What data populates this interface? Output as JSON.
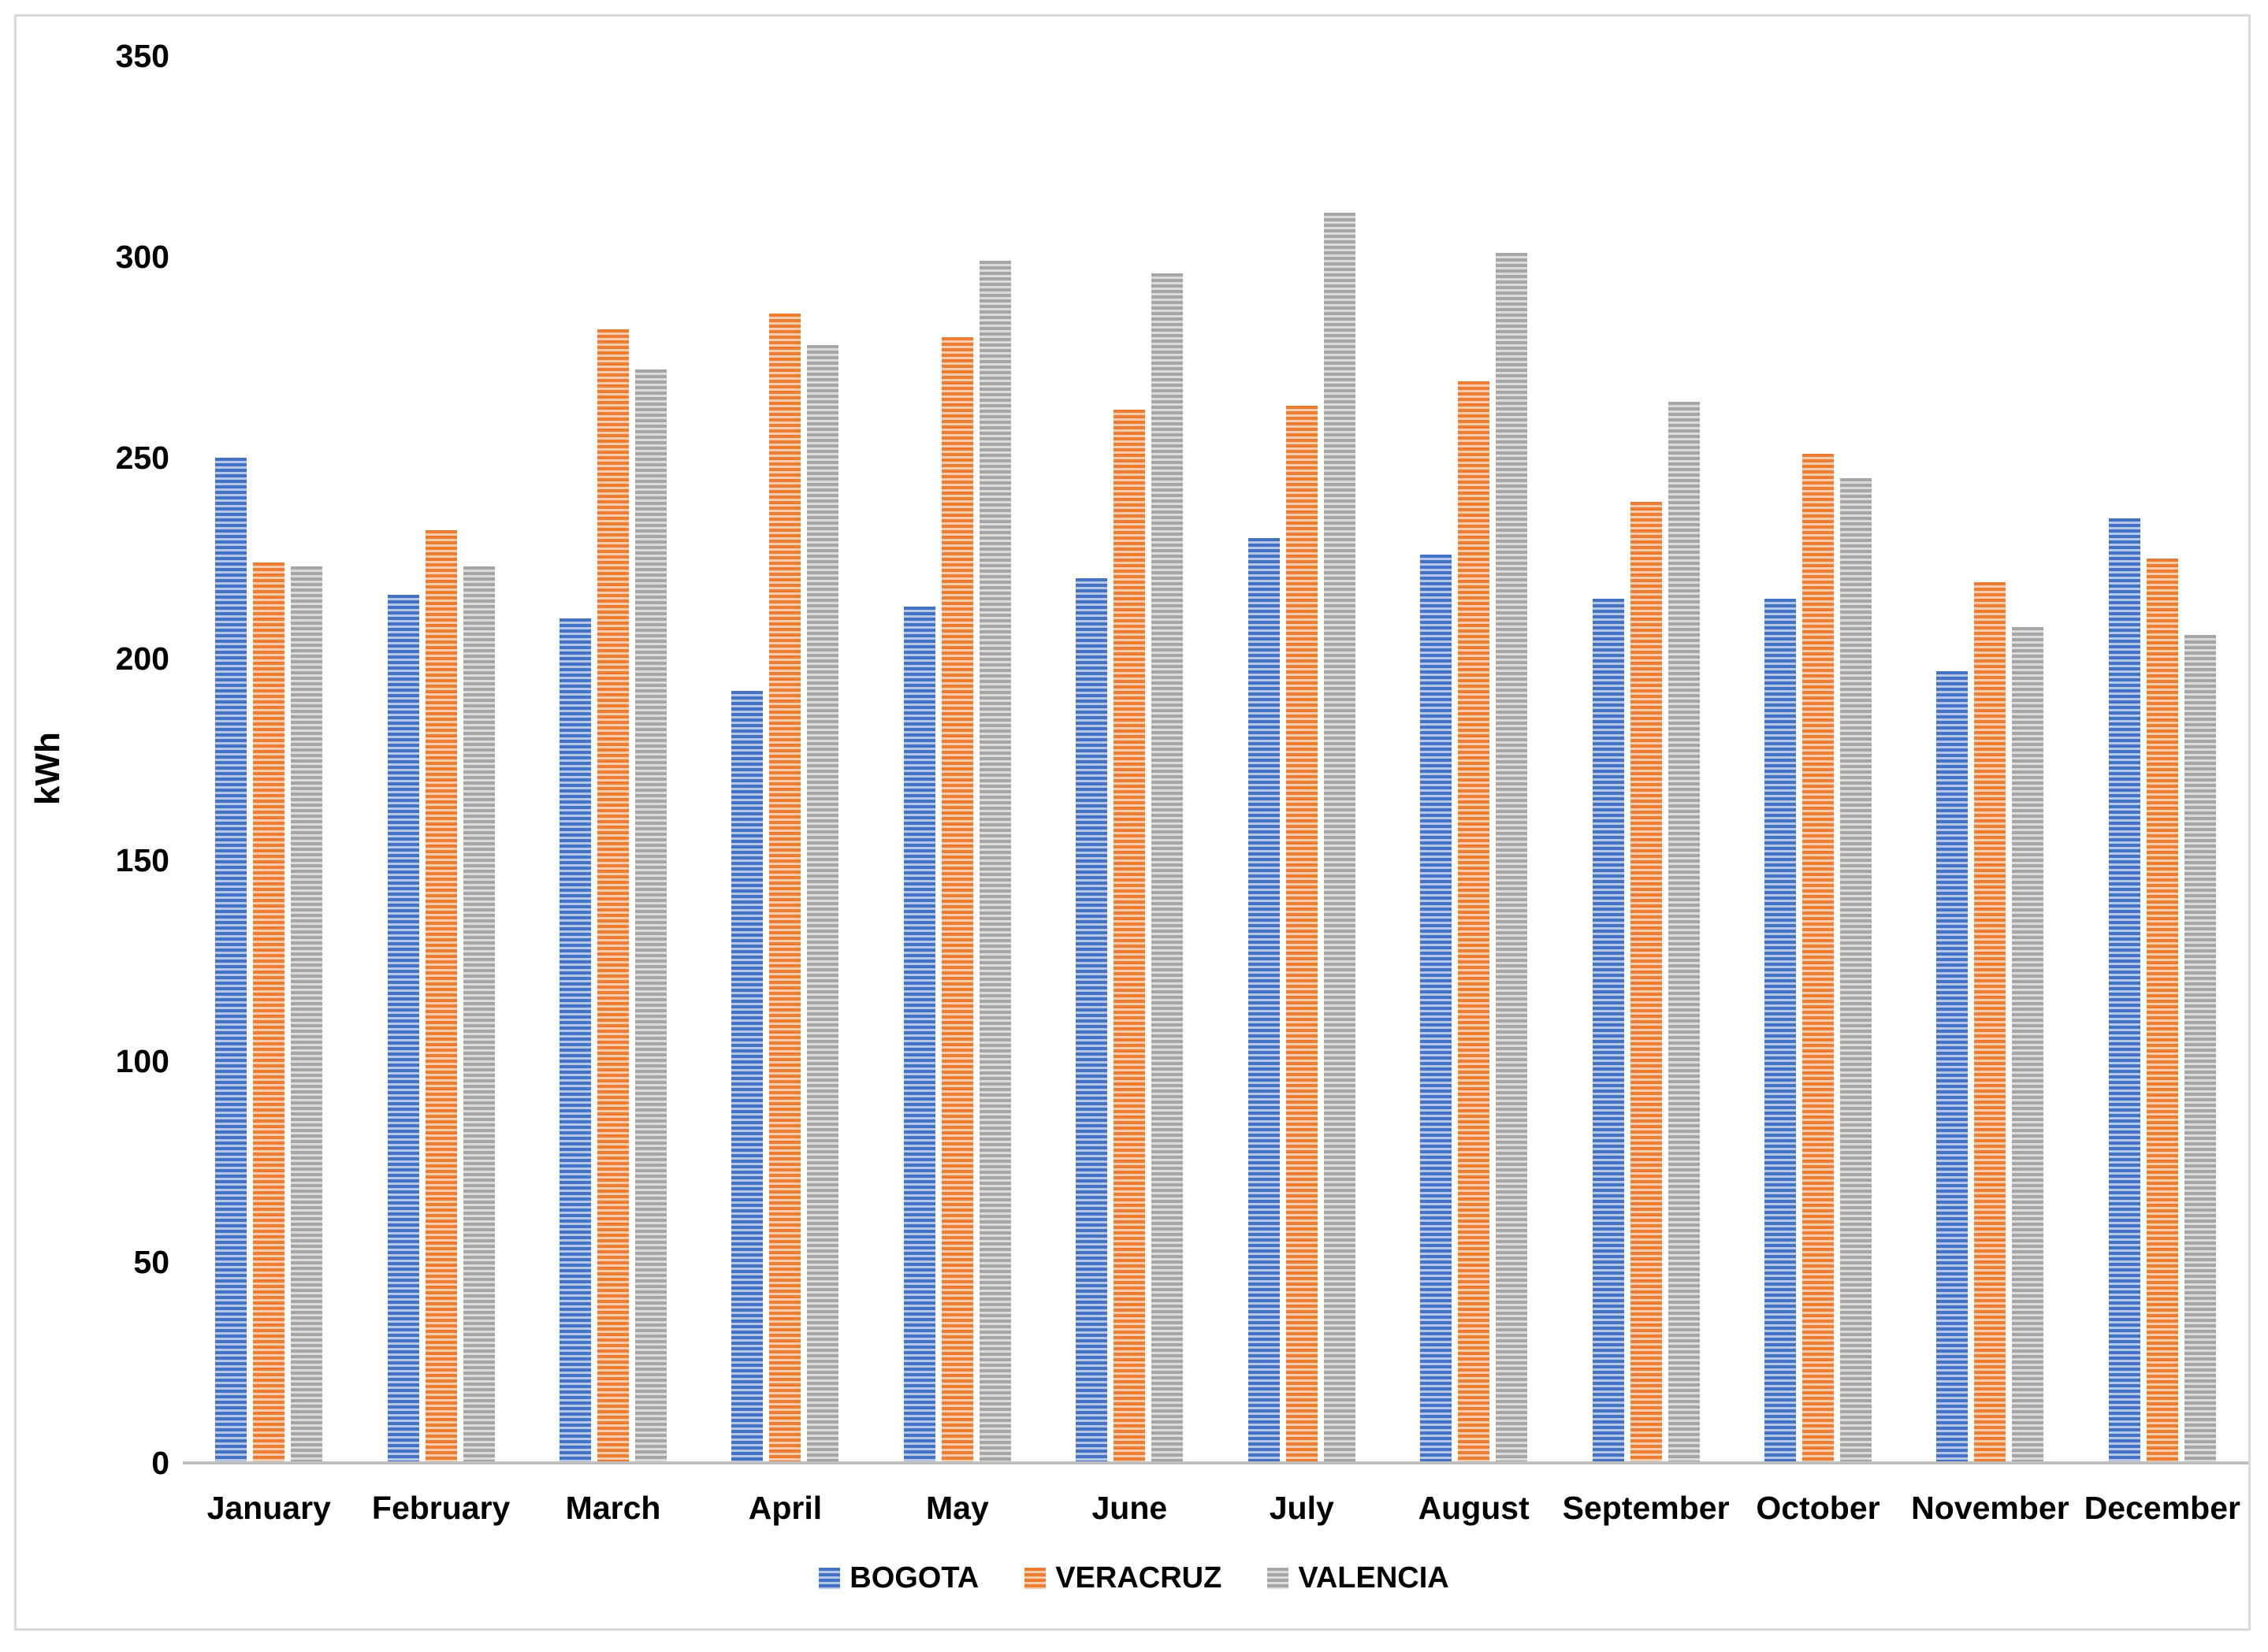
{
  "page": {
    "background": "#ffffff",
    "frame_border_color": "#d9d9d9"
  },
  "chart_data": {
    "type": "bar",
    "title": "",
    "xlabel": "",
    "ylabel": "kWh",
    "ylim": [
      0,
      350
    ],
    "yticks": [
      0,
      50,
      100,
      150,
      200,
      250,
      300,
      350
    ],
    "grid": false,
    "plot_background": "#ffffff",
    "axis_line_color": "#bfbfbf",
    "text_color": "#000000",
    "legend_position": "bottom",
    "bar_pattern": "horizontal-stripes",
    "categories": [
      "January",
      "February",
      "March",
      "April",
      "May",
      "June",
      "July",
      "August",
      "September",
      "October",
      "November",
      "December"
    ],
    "series": [
      {
        "name": "BOGOTA",
        "color": "#4472c4",
        "color_light": "#b4c7e7",
        "values": [
          250,
          216,
          210,
          192,
          213,
          220,
          230,
          226,
          215,
          215,
          197,
          235
        ]
      },
      {
        "name": "VERACRUZ",
        "color": "#ed7d31",
        "color_light": "#f8cbad",
        "values": [
          224,
          232,
          282,
          286,
          280,
          262,
          263,
          269,
          239,
          251,
          219,
          225
        ]
      },
      {
        "name": "VALENCIA",
        "color": "#a5a5a5",
        "color_light": "#dbdbdb",
        "values": [
          223,
          223,
          272,
          278,
          299,
          296,
          311,
          301,
          264,
          245,
          208,
          206
        ]
      }
    ]
  }
}
